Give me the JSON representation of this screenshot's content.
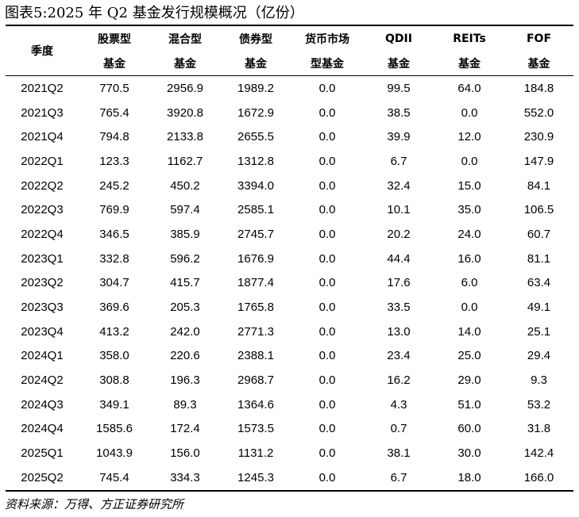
{
  "title": "图表5:2025 年 Q2 基金发行规模概况（亿份）",
  "header": {
    "quarter": "季度",
    "columns": [
      {
        "line1": "股票型",
        "line2": "基金"
      },
      {
        "line1": "混合型",
        "line2": "基金"
      },
      {
        "line1": "债券型",
        "line2": "基金"
      },
      {
        "line1": "货币市场",
        "line2": "型基金"
      },
      {
        "line1": "QDII",
        "line2": "基金"
      },
      {
        "line1": "REITs",
        "line2": "基金"
      },
      {
        "line1": "FOF",
        "line2": "基金"
      }
    ]
  },
  "rows": [
    [
      "2021Q2",
      "770.5",
      "2956.9",
      "1989.2",
      "0.0",
      "99.5",
      "64.0",
      "184.8"
    ],
    [
      "2021Q3",
      "765.4",
      "3920.8",
      "1672.9",
      "0.0",
      "38.5",
      "0.0",
      "552.0"
    ],
    [
      "2021Q4",
      "794.8",
      "2133.8",
      "2655.5",
      "0.0",
      "39.9",
      "12.0",
      "230.9"
    ],
    [
      "2022Q1",
      "123.3",
      "1162.7",
      "1312.8",
      "0.0",
      "6.7",
      "0.0",
      "147.9"
    ],
    [
      "2022Q2",
      "245.2",
      "450.2",
      "3394.0",
      "0.0",
      "32.4",
      "15.0",
      "84.1"
    ],
    [
      "2022Q3",
      "769.9",
      "597.4",
      "2585.1",
      "0.0",
      "10.1",
      "35.0",
      "106.5"
    ],
    [
      "2022Q4",
      "346.5",
      "385.9",
      "2745.7",
      "0.0",
      "20.2",
      "24.0",
      "60.7"
    ],
    [
      "2023Q1",
      "332.8",
      "596.2",
      "1676.9",
      "0.0",
      "44.4",
      "16.0",
      "81.1"
    ],
    [
      "2023Q2",
      "304.7",
      "415.7",
      "1877.4",
      "0.0",
      "17.6",
      "6.0",
      "63.4"
    ],
    [
      "2023Q3",
      "369.6",
      "205.3",
      "1765.8",
      "0.0",
      "33.5",
      "0.0",
      "49.1"
    ],
    [
      "2023Q4",
      "413.2",
      "242.0",
      "2771.3",
      "0.0",
      "13.0",
      "14.0",
      "25.1"
    ],
    [
      "2024Q1",
      "358.0",
      "220.6",
      "2388.1",
      "0.0",
      "23.4",
      "25.0",
      "29.4"
    ],
    [
      "2024Q2",
      "308.8",
      "196.3",
      "2968.7",
      "0.0",
      "16.2",
      "29.0",
      "9.3"
    ],
    [
      "2024Q3",
      "349.1",
      "89.3",
      "1364.6",
      "0.0",
      "4.3",
      "51.0",
      "53.2"
    ],
    [
      "2024Q4",
      "1585.6",
      "172.4",
      "1573.5",
      "0.0",
      "0.7",
      "60.0",
      "31.8"
    ],
    [
      "2025Q1",
      "1043.9",
      "156.0",
      "1131.2",
      "0.0",
      "38.1",
      "30.0",
      "142.4"
    ],
    [
      "2025Q2",
      "745.4",
      "334.3",
      "1245.3",
      "0.0",
      "6.7",
      "18.0",
      "166.0"
    ]
  ],
  "source": "资料来源：万得、方正证券研究所"
}
